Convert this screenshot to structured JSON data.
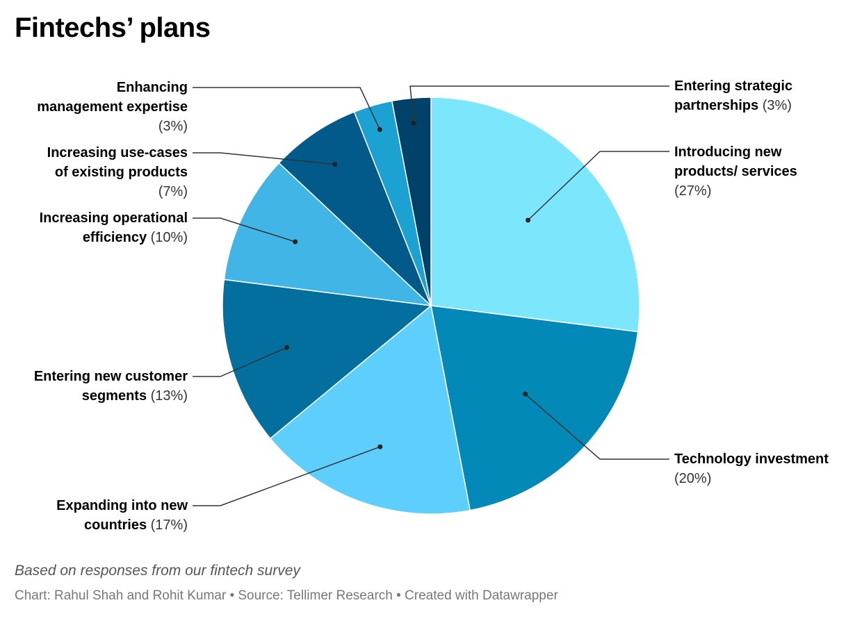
{
  "title": "Fintechs’ plans",
  "chart_data": {
    "type": "pie",
    "title": "Fintechs’ plans",
    "slices": [
      {
        "name": "Introducing new products/ services",
        "value": 27,
        "label": "(27%)",
        "color": "#7ce6fd"
      },
      {
        "name": "Technology investment",
        "value": 20,
        "label": "(20%)",
        "color": "#0289b8"
      },
      {
        "name": "Expanding into new countries",
        "value": 17,
        "label": "(17%)",
        "color": "#5ecefc"
      },
      {
        "name": "Entering new customer segments",
        "value": 13,
        "label": "(13%)",
        "color": "#026f9e"
      },
      {
        "name": "Increasing operational efficiency",
        "value": 10,
        "label": "(10%)",
        "color": "#41b6e6"
      },
      {
        "name": "Increasing use-cases of existing products",
        "value": 7,
        "label": "(7%)",
        "color": "#015a89"
      },
      {
        "name": "Enhancing management expertise",
        "value": 3,
        "label": "(3%)",
        "color": "#1ca1d3"
      },
      {
        "name": "Entering strategic partnerships",
        "value": 3,
        "label": "(3%)",
        "color": "#01426a"
      }
    ]
  },
  "footer": {
    "description": "Based on responses from our fintech survey",
    "credit": "Chart: Rahul Shah and Rohit Kumar • Source: Tellimer Research • Created with Datawrapper"
  }
}
